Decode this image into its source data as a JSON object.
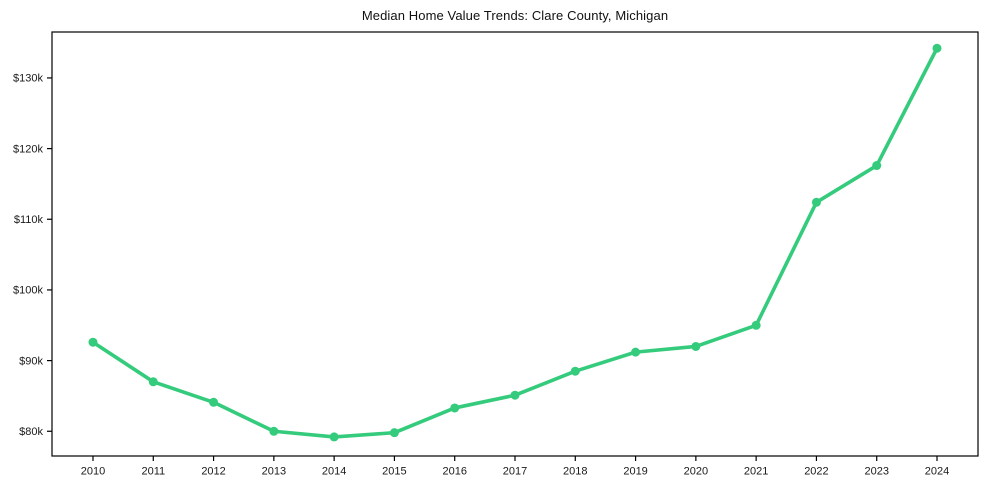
{
  "page": {
    "background": "#ffffff"
  },
  "chart_data": {
    "type": "line",
    "title": "Median Home Value Trends: Clare County, Michigan",
    "xlabel": "",
    "ylabel": "",
    "grid": false,
    "legend": "none",
    "line_color": "#35cb7c",
    "marker_color": "#35cb7c",
    "axis_color": "#000000",
    "tick_label_color": "#1a1a1a",
    "xlim": [
      2009.32,
      2024.68
    ],
    "ylim": [
      76500,
      136500
    ],
    "x": [
      2010,
      2011,
      2012,
      2013,
      2014,
      2015,
      2016,
      2017,
      2018,
      2019,
      2020,
      2021,
      2022,
      2023,
      2024
    ],
    "values": [
      92600,
      87000,
      84100,
      80000,
      79200,
      79800,
      83300,
      85100,
      88500,
      91200,
      92000,
      95000,
      112400,
      117600,
      134200
    ],
    "series_name": "Median Home Value",
    "xticks": [
      {
        "value": 2010,
        "label": "2010"
      },
      {
        "value": 2011,
        "label": "2011"
      },
      {
        "value": 2012,
        "label": "2012"
      },
      {
        "value": 2013,
        "label": "2013"
      },
      {
        "value": 2014,
        "label": "2014"
      },
      {
        "value": 2015,
        "label": "2015"
      },
      {
        "value": 2016,
        "label": "2016"
      },
      {
        "value": 2017,
        "label": "2017"
      },
      {
        "value": 2018,
        "label": "2018"
      },
      {
        "value": 2019,
        "label": "2019"
      },
      {
        "value": 2020,
        "label": "2020"
      },
      {
        "value": 2021,
        "label": "2021"
      },
      {
        "value": 2022,
        "label": "2022"
      },
      {
        "value": 2023,
        "label": "2023"
      },
      {
        "value": 2024,
        "label": "2024"
      }
    ],
    "yticks": [
      {
        "value": 80000,
        "label": "$80k"
      },
      {
        "value": 90000,
        "label": "$90k"
      },
      {
        "value": 100000,
        "label": "$100k"
      },
      {
        "value": 110000,
        "label": "$110k"
      },
      {
        "value": 120000,
        "label": "$120k"
      },
      {
        "value": 130000,
        "label": "$130k"
      }
    ]
  }
}
